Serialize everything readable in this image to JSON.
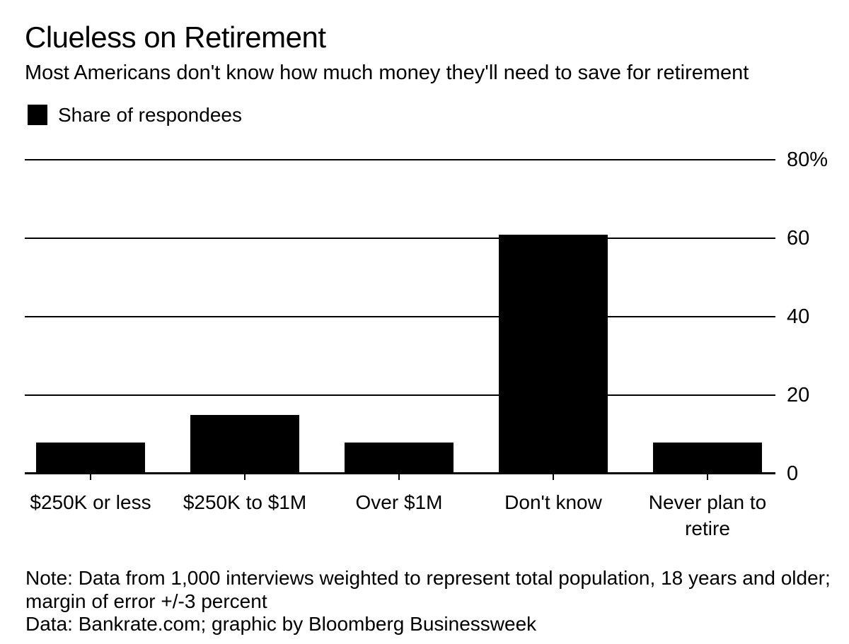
{
  "chart_data": {
    "type": "bar",
    "title": "Clueless on Retirement",
    "subtitle": "Most Americans don't know how much money they'll need to save for retirement",
    "legend": [
      "Share of respondees"
    ],
    "legend_position": "top-left",
    "categories": [
      "$250K or less",
      "$250K to $1M",
      "Over $1M",
      "Don't know",
      "Never plan to retire"
    ],
    "values": [
      8,
      15,
      8,
      61,
      8
    ],
    "value_unit": "percent of respondents",
    "ylim": [
      0,
      80
    ],
    "ytick_values": [
      80,
      60,
      40,
      20,
      0
    ],
    "ytick_labels": [
      "80%",
      "60",
      "40",
      "20",
      "0"
    ],
    "ytick_side": "right",
    "grid": "horizontal",
    "bar_color": "#000000",
    "background_color": "#ffffff"
  },
  "notes": {
    "note_line1": "Note: Data from 1,000 interviews weighted to represent total population, 18 years and older;",
    "note_line2": "margin of error +/-3 percent",
    "source": "Data: Bankrate.com; graphic by Bloomberg Businessweek"
  }
}
